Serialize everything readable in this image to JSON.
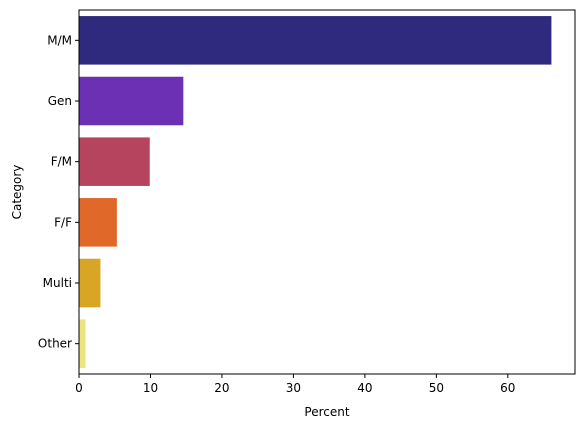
{
  "chart_data": {
    "type": "bar",
    "orientation": "horizontal",
    "categories": [
      "M/M",
      "Gen",
      "F/M",
      "F/F",
      "Multi",
      "Other"
    ],
    "values": [
      66.1,
      14.6,
      9.9,
      5.3,
      3.0,
      0.9
    ],
    "colors": [
      "#2f2a7d",
      "#6b30b4",
      "#b7445f",
      "#e0692a",
      "#d9a524",
      "#ece47c"
    ],
    "xlabel": "Percent",
    "ylabel": "Category",
    "xlim": [
      0,
      69.4
    ],
    "xticks": [
      0,
      10,
      20,
      30,
      40,
      50,
      60
    ],
    "grid": false
  }
}
